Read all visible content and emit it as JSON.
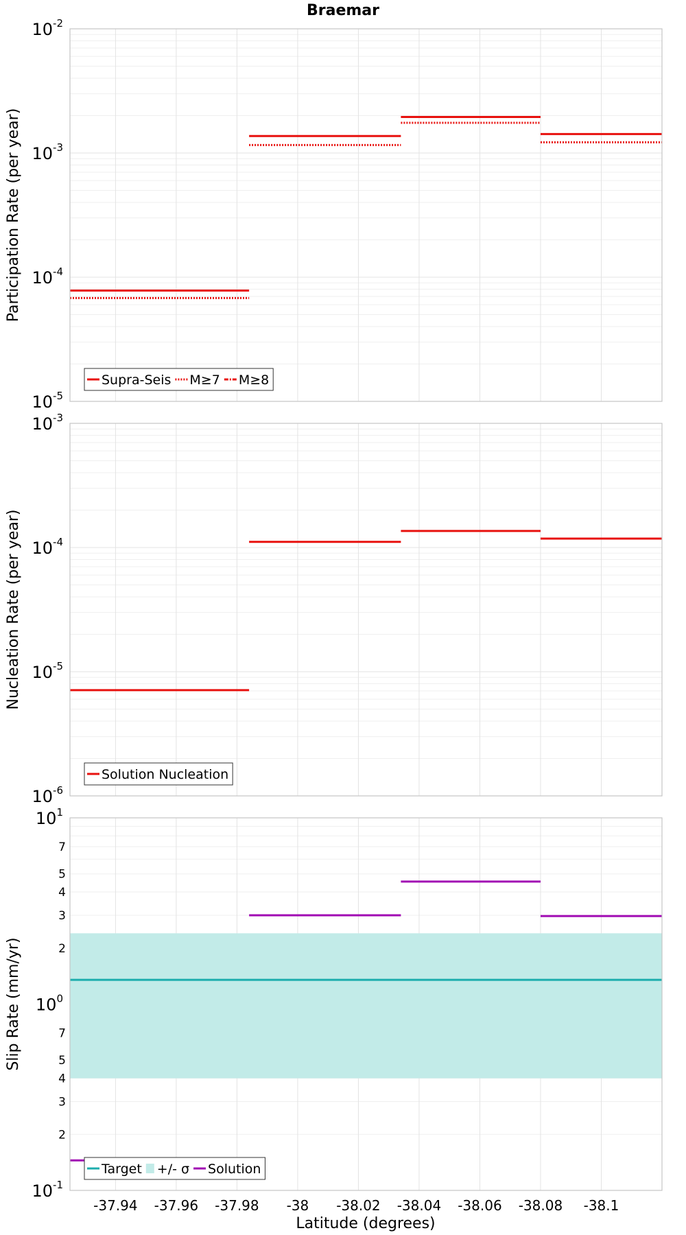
{
  "figure": {
    "title": "Braemar",
    "xlabel": "Latitude (degrees)"
  },
  "colors": {
    "rate": "#e8110e",
    "slip_solution": "#a10ab3",
    "target_line": "#1cadad",
    "target_band": "#c2ebe8",
    "grid_major": "#e3e3e3",
    "grid_minor": "#efefef",
    "frame": "#c5c5c5",
    "legend_border": "#333333"
  },
  "chart_data": [
    {
      "type": "line",
      "name": "participation",
      "ylabel": "Participation Rate (per year)",
      "yscale": "log",
      "ylim": [
        1e-05,
        0.01
      ],
      "y_ticks": [
        {
          "value": 0.01,
          "base": "10",
          "exp": "-2"
        },
        {
          "value": 0.001,
          "base": "10",
          "exp": "-3"
        },
        {
          "value": 0.0001,
          "base": "10",
          "exp": "-4"
        },
        {
          "value": 1e-05,
          "base": "10",
          "exp": "-5"
        }
      ],
      "xlim": [
        -37.925,
        -38.12
      ],
      "x_reversed": true,
      "x_ticks": [
        "-37.94",
        "-37.96",
        "-37.98",
        "-38",
        "-38.02",
        "-38.04",
        "-38.06",
        "-38.08",
        "-38.1"
      ],
      "x_tick_values": [
        -37.94,
        -37.96,
        -37.98,
        -38.0,
        -38.02,
        -38.04,
        -38.06,
        -38.08,
        -38.1
      ],
      "series": [
        {
          "name": "Supra-Seis",
          "style": "solid",
          "segments": [
            {
              "x": [
                -37.925,
                -37.984
              ],
              "y": 7.8e-05
            },
            {
              "x": [
                -37.984,
                -38.034
              ],
              "y": 0.00137
            },
            {
              "x": [
                -38.034,
                -38.08
              ],
              "y": 0.00195
            },
            {
              "x": [
                -38.08,
                -38.12
              ],
              "y": 0.00142
            }
          ]
        },
        {
          "name": "M≥7",
          "style": "dotted",
          "segments": [
            {
              "x": [
                -37.925,
                -37.984
              ],
              "y": 6.8e-05
            },
            {
              "x": [
                -37.984,
                -38.034
              ],
              "y": 0.00116
            },
            {
              "x": [
                -38.034,
                -38.08
              ],
              "y": 0.00175
            },
            {
              "x": [
                -38.08,
                -38.12
              ],
              "y": 0.00122
            }
          ]
        },
        {
          "name": "M≥8",
          "style": "dashdot",
          "segments": []
        }
      ],
      "legend": "bottom-left"
    },
    {
      "type": "line",
      "name": "nucleation",
      "ylabel": "Nucleation Rate (per year)",
      "yscale": "log",
      "ylim": [
        1e-06,
        0.001
      ],
      "y_ticks": [
        {
          "value": 0.001,
          "base": "10",
          "exp": "-3"
        },
        {
          "value": 0.0001,
          "base": "10",
          "exp": "-4"
        },
        {
          "value": 1e-05,
          "base": "10",
          "exp": "-5"
        },
        {
          "value": 1e-06,
          "base": "10",
          "exp": "-6"
        }
      ],
      "xlim": [
        -37.925,
        -38.12
      ],
      "x_reversed": true,
      "series": [
        {
          "name": "Solution Nucleation",
          "style": "solid",
          "segments": [
            {
              "x": [
                -37.925,
                -37.984
              ],
              "y": 7.1e-06
            },
            {
              "x": [
                -37.984,
                -38.034
              ],
              "y": 0.000111
            },
            {
              "x": [
                -38.034,
                -38.08
              ],
              "y": 0.000136
            },
            {
              "x": [
                -38.08,
                -38.12
              ],
              "y": 0.000118
            }
          ]
        }
      ],
      "legend": "bottom-left"
    },
    {
      "type": "line",
      "name": "slip",
      "ylabel": "Slip Rate (mm/yr)",
      "yscale": "log",
      "ylim": [
        0.1,
        10
      ],
      "y_ticks": [
        {
          "value": 10,
          "base": "10",
          "exp": "1"
        },
        {
          "value": 1,
          "base": "10",
          "exp": "0"
        },
        {
          "value": 0.1,
          "base": "10",
          "exp": "-1"
        }
      ],
      "y_minor_labels": [
        {
          "value": 7,
          "label": "7"
        },
        {
          "value": 5,
          "label": "5"
        },
        {
          "value": 4,
          "label": "4"
        },
        {
          "value": 3,
          "label": "3"
        },
        {
          "value": 2,
          "label": "2"
        },
        {
          "value": 0.7,
          "label": "7"
        },
        {
          "value": 0.5,
          "label": "5"
        },
        {
          "value": 0.4,
          "label": "4"
        },
        {
          "value": 0.3,
          "label": "3"
        },
        {
          "value": 0.2,
          "label": "2"
        }
      ],
      "xlim": [
        -37.925,
        -38.12
      ],
      "x_reversed": true,
      "band": {
        "name": "+/- σ",
        "low": 0.4,
        "high": 2.4
      },
      "series": [
        {
          "name": "Target",
          "style": "solid",
          "segments": [
            {
              "x": [
                -37.925,
                -38.12
              ],
              "y": 1.35
            }
          ]
        },
        {
          "name": "Solution",
          "style": "solid",
          "segments": [
            {
              "x": [
                -37.925,
                -37.984
              ],
              "y": 0.145
            },
            {
              "x": [
                -37.984,
                -38.034
              ],
              "y": 3.0
            },
            {
              "x": [
                -38.034,
                -38.08
              ],
              "y": 4.55
            },
            {
              "x": [
                -38.08,
                -38.12
              ],
              "y": 2.97
            }
          ]
        }
      ],
      "legend": "bottom-left"
    }
  ]
}
